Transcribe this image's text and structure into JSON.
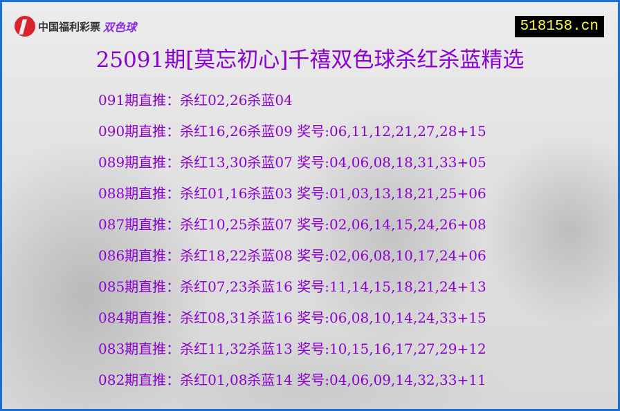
{
  "logo": {
    "org": "中国福利彩票",
    "game": "双色球"
  },
  "site": "518158.cn",
  "title": "25091期[莫忘初心]千禧双色球杀红杀蓝精选",
  "rows": [
    "091期直推：杀红02,26杀蓝04",
    "090期直推：杀红16,26杀蓝09 奖号:06,11,12,21,27,28+15",
    "089期直推：杀红13,30杀蓝07 奖号:04,06,08,18,31,33+05",
    "088期直推：杀红01,16杀蓝03 奖号:01,03,13,18,21,25+06",
    "087期直推：杀红10,25杀蓝07 奖号:02,06,14,15,24,26+08",
    "086期直推：杀红18,22杀蓝08 奖号:02,06,08,10,17,24+06",
    "085期直推：杀红07,23杀蓝16 奖号:11,14,15,18,21,24+13",
    "084期直推：杀红08,31杀蓝16 奖号:06,08,10,14,24,33+15",
    "083期直推：杀红11,32杀蓝13 奖号:10,15,16,17,27,29+12",
    "082期直推：杀红01,08杀蓝14 奖号:04,06,09,14,32,33+11"
  ],
  "colors": {
    "text": "#8b00d4",
    "border": "#1a6fd6",
    "site_bg": "#000000",
    "site_text": "#ffff33"
  }
}
